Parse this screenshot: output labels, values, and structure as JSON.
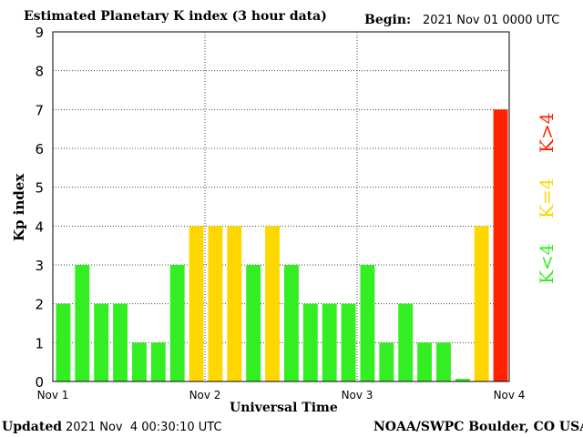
{
  "header": {
    "title": "Estimated Planetary K index (3 hour data)",
    "begin_label": "Begin:",
    "begin_value": "2021 Nov 01 0000 UTC"
  },
  "footer": {
    "updated_label": "Updated",
    "updated_value": "2021 Nov  4 00:30:10 UTC",
    "credit": "NOAA/SWPC Boulder, CO USA"
  },
  "legend": {
    "low": "K<4",
    "eq": "K=4",
    "high": "K>4"
  },
  "colors": {
    "low": "#33ee22",
    "eq": "#ffd700",
    "high": "#ff2200",
    "grid": "#444444",
    "axis": "#000000"
  },
  "chart_data": {
    "type": "bar",
    "title": "Estimated Planetary K index (3 hour data)",
    "xlabel": "Universal Time",
    "ylabel": "Kp index",
    "ylim": [
      0,
      9
    ],
    "yticks": [
      "0",
      "1",
      "2",
      "3",
      "4",
      "5",
      "6",
      "7",
      "8",
      "9"
    ],
    "xticks": [
      "Nov 1",
      "Nov 2",
      "Nov 3",
      "Nov 4"
    ],
    "grid": true,
    "categories": [
      "Nov 1 00-03",
      "Nov 1 03-06",
      "Nov 1 06-09",
      "Nov 1 09-12",
      "Nov 1 12-15",
      "Nov 1 15-18",
      "Nov 1 18-21",
      "Nov 1 21-24",
      "Nov 2 00-03",
      "Nov 2 03-06",
      "Nov 2 06-09",
      "Nov 2 09-12",
      "Nov 2 12-15",
      "Nov 2 15-18",
      "Nov 2 18-21",
      "Nov 2 21-24",
      "Nov 3 00-03",
      "Nov 3 03-06",
      "Nov 3 06-09",
      "Nov 3 09-12",
      "Nov 3 12-15",
      "Nov 3 15-18",
      "Nov 3 18-21",
      "Nov 3 21-24"
    ],
    "values": [
      2,
      3,
      2,
      2,
      1,
      1,
      3,
      4,
      4,
      4,
      3,
      4,
      3,
      2,
      2,
      2,
      3,
      1,
      2,
      1,
      1,
      0.07,
      4,
      7
    ]
  }
}
